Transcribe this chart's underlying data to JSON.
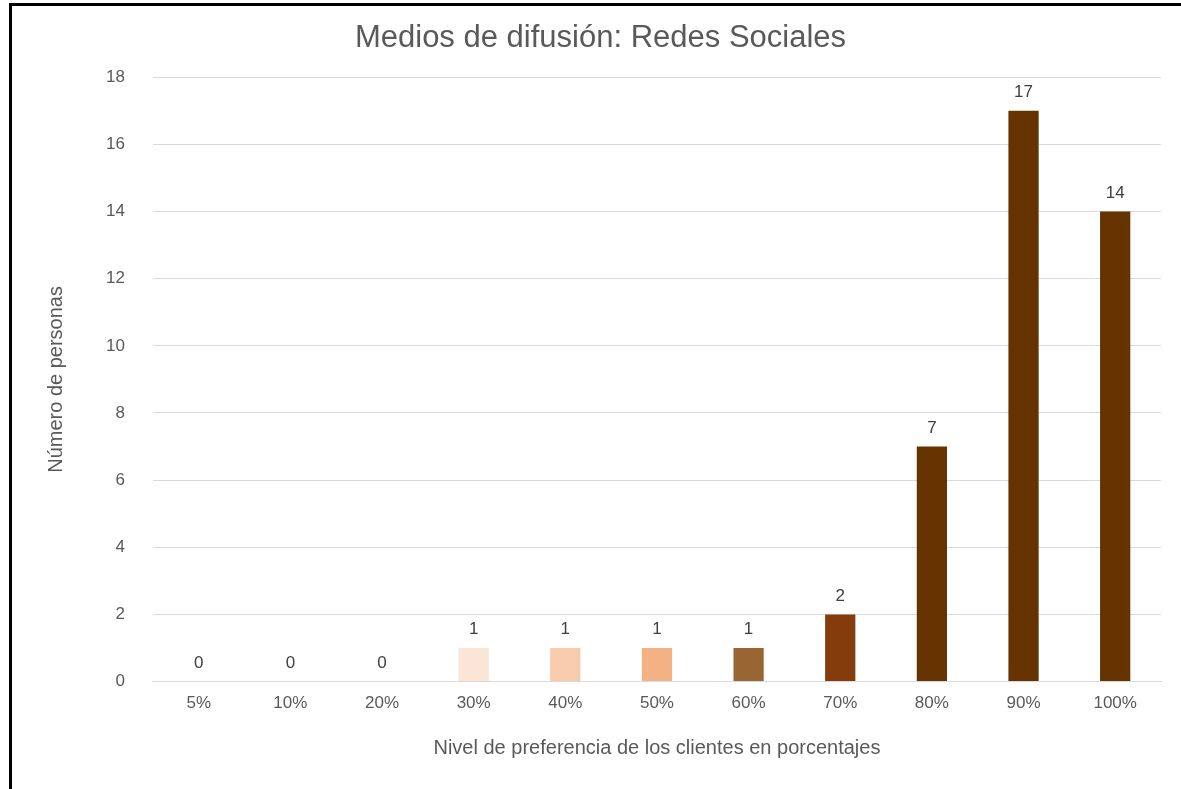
{
  "chart_data": {
    "type": "bar",
    "title": "Medios de difusión: Redes Sociales",
    "xlabel": "Nivel de preferencia de los clientes en porcentajes",
    "ylabel": "Número de personas",
    "categories": [
      "5%",
      "10%",
      "20%",
      "30%",
      "40%",
      "50%",
      "60%",
      "70%",
      "80%",
      "90%",
      "100%"
    ],
    "values": [
      0,
      0,
      0,
      1,
      1,
      1,
      1,
      2,
      7,
      17,
      14
    ],
    "colors": [
      "#fbe5d6",
      "#fbe5d6",
      "#fbe5d6",
      "#fbe5d6",
      "#f8cbad",
      "#f4b183",
      "#996633",
      "#843c0c",
      "#663300",
      "#663300",
      "#663300"
    ],
    "ylim": [
      0,
      18
    ],
    "yticks": [
      0,
      2,
      4,
      6,
      8,
      10,
      12,
      14,
      16,
      18
    ],
    "grid": "y",
    "legend": false,
    "data_labels": true
  }
}
